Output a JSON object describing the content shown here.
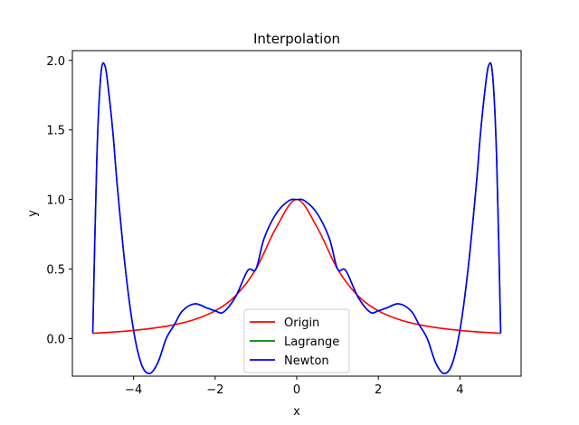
{
  "chart_data": {
    "type": "line",
    "title": "Interpolation",
    "xlabel": "x",
    "ylabel": "y",
    "xlim": [
      -5.5,
      5.5
    ],
    "ylim": [
      -0.27,
      2.07
    ],
    "xticks": [
      -4,
      -2,
      0,
      2,
      4
    ],
    "xtick_labels": [
      "−4",
      "−2",
      "0",
      "2",
      "4"
    ],
    "yticks": [
      0.0,
      0.5,
      1.0,
      1.5,
      2.0
    ],
    "ytick_labels": [
      "0.0",
      "0.5",
      "1.0",
      "1.5",
      "2.0"
    ],
    "grid": false,
    "legend_position": "bottom-center",
    "series": [
      {
        "name": "Origin",
        "color": "#ff0000",
        "x": [
          -5,
          -4.5,
          -4,
          -3.5,
          -3,
          -2.5,
          -2,
          -1.5,
          -1,
          -0.5,
          0,
          0.5,
          1,
          1.5,
          2,
          2.5,
          3,
          3.5,
          4,
          4.5,
          5
        ],
        "y": [
          0.0385,
          0.0471,
          0.0588,
          0.0755,
          0.1,
          0.1379,
          0.2,
          0.3077,
          0.5,
          0.8,
          1.0,
          0.8,
          0.5,
          0.3077,
          0.2,
          0.1379,
          0.1,
          0.0755,
          0.0588,
          0.0471,
          0.0385
        ]
      },
      {
        "name": "Lagrange",
        "color": "#008000",
        "x": [
          -5,
          -4.9,
          -4.8,
          -4.7,
          -4.6,
          -4.5,
          -4.4,
          -4.2,
          -4,
          -3.8,
          -3.6,
          -3.4,
          -3.2,
          -3,
          -2.8,
          -2.5,
          -2.2,
          -2,
          -1.8,
          -1.5,
          -1.2,
          -1,
          -0.8,
          -0.5,
          -0.2,
          0,
          0.2,
          0.5,
          0.8,
          1,
          1.2,
          1.5,
          1.8,
          2,
          2.2,
          2.5,
          2.8,
          3,
          3.2,
          3.4,
          3.6,
          3.8,
          4,
          4.2,
          4.4,
          4.5,
          4.6,
          4.7,
          4.8,
          4.9,
          5
        ],
        "y": [
          0.0385,
          1.3,
          1.9,
          1.96,
          1.75,
          1.46,
          1.1,
          0.5,
          0.0588,
          -0.19,
          -0.25,
          -0.17,
          0.0,
          0.1,
          0.2,
          0.25,
          0.22,
          0.2,
          0.19,
          0.3,
          0.49,
          0.5,
          0.72,
          0.9,
          0.99,
          1.0,
          0.99,
          0.9,
          0.72,
          0.5,
          0.49,
          0.3,
          0.19,
          0.2,
          0.22,
          0.25,
          0.2,
          0.1,
          0.0,
          -0.17,
          -0.25,
          -0.19,
          0.0588,
          0.5,
          1.1,
          1.46,
          1.75,
          1.96,
          1.9,
          1.3,
          0.0385
        ]
      },
      {
        "name": "Newton",
        "color": "#0000ff",
        "x": [
          -5,
          -4.9,
          -4.8,
          -4.7,
          -4.6,
          -4.5,
          -4.4,
          -4.2,
          -4,
          -3.8,
          -3.6,
          -3.4,
          -3.2,
          -3,
          -2.8,
          -2.5,
          -2.2,
          -2,
          -1.8,
          -1.5,
          -1.2,
          -1,
          -0.8,
          -0.5,
          -0.2,
          0,
          0.2,
          0.5,
          0.8,
          1,
          1.2,
          1.5,
          1.8,
          2,
          2.2,
          2.5,
          2.8,
          3,
          3.2,
          3.4,
          3.6,
          3.8,
          4,
          4.2,
          4.4,
          4.5,
          4.6,
          4.7,
          4.8,
          4.9,
          5
        ],
        "y": [
          0.0385,
          1.3,
          1.9,
          1.96,
          1.75,
          1.46,
          1.1,
          0.5,
          0.0588,
          -0.19,
          -0.25,
          -0.17,
          0.0,
          0.1,
          0.2,
          0.25,
          0.22,
          0.2,
          0.19,
          0.3,
          0.49,
          0.5,
          0.72,
          0.9,
          0.99,
          1.0,
          0.99,
          0.9,
          0.72,
          0.5,
          0.49,
          0.3,
          0.19,
          0.2,
          0.22,
          0.25,
          0.2,
          0.1,
          0.0,
          -0.17,
          -0.25,
          -0.19,
          0.0588,
          0.5,
          1.1,
          1.46,
          1.75,
          1.96,
          1.9,
          1.3,
          0.0385
        ]
      }
    ]
  }
}
